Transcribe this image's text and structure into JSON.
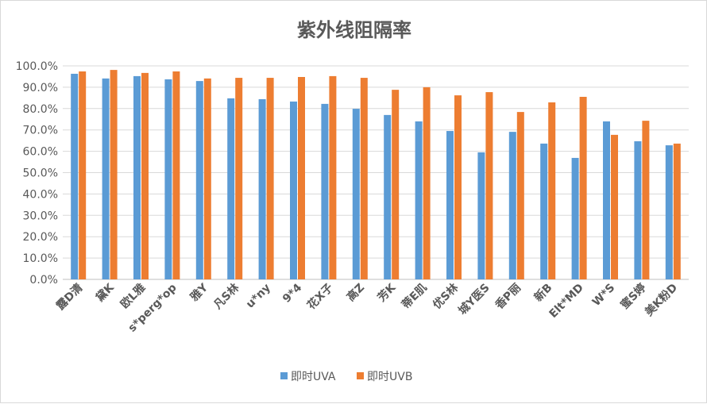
{
  "chart_data": {
    "type": "bar",
    "title": "紫外线阻隔率",
    "xlabel": "",
    "ylabel": "",
    "ylim": [
      0,
      100
    ],
    "y_ticks": [
      "0.0%",
      "10.0%",
      "20.0%",
      "30.0%",
      "40.0%",
      "50.0%",
      "60.0%",
      "70.0%",
      "80.0%",
      "90.0%",
      "100.0%"
    ],
    "grid": true,
    "legend_position": "bottom",
    "categories": [
      "露D清",
      "黛K",
      "欧L雅",
      "s*perg*op",
      "雅Y",
      "凡S林",
      "u*ny",
      "9*4",
      "花X子",
      "高Z",
      "芳K",
      "蒂E肌",
      "优S林",
      "城Y医S",
      "香P丽",
      "新B",
      "Elt*MD",
      "W*S",
      "蜜S婷",
      "美K粉D"
    ],
    "series": [
      {
        "name": "即时UVA",
        "color": "#5b9bd5",
        "values": [
          96.3,
          94.1,
          95.2,
          93.7,
          92.9,
          84.8,
          84.4,
          83.3,
          82.2,
          79.9,
          77.0,
          74.0,
          69.5,
          59.5,
          69.1,
          63.6,
          56.9,
          74.0,
          64.7,
          62.8
        ]
      },
      {
        "name": "即时UVB",
        "color": "#ed7d31",
        "values": [
          97.4,
          98.1,
          96.7,
          97.4,
          94.1,
          94.4,
          94.4,
          94.8,
          95.2,
          94.4,
          88.8,
          90.0,
          86.2,
          87.7,
          78.4,
          82.9,
          85.5,
          67.7,
          74.3,
          63.6
        ]
      }
    ]
  }
}
